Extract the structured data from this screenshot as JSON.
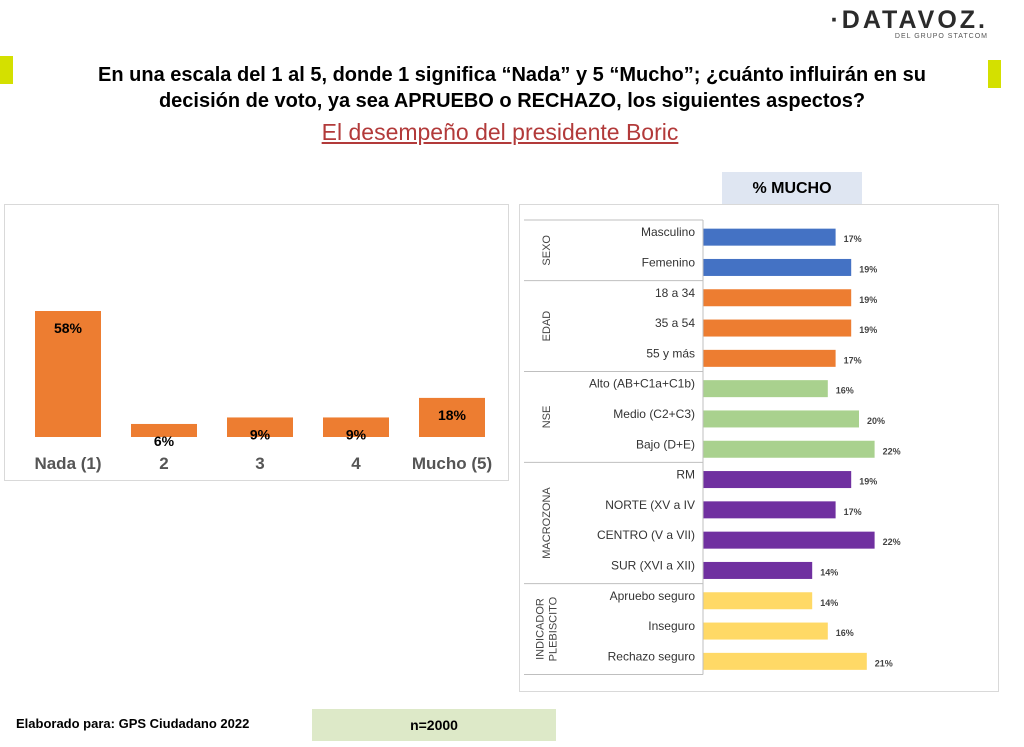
{
  "logo": {
    "main": "·DATAVOZ.",
    "sub": "DEL GRUPO STATCOM"
  },
  "title_line1": "En una escala del 1 al 5, donde 1 significa “Nada” y 5 “Mucho”; ¿cuánto influirán en su",
  "title_line2": "decisión de voto, ya sea APRUEBO o RECHAZO, los siguientes aspectos?",
  "subtitle": "El desempeño del presidente Boric",
  "mucho_header": "% MUCHO",
  "footer": {
    "elaborado": "Elaborado para:  GPS Ciudadano 2022",
    "n": "n=2000"
  },
  "colors": {
    "accent_marker": "#d4e000",
    "subtitle": "#b23a3a",
    "left_bars": "#ed7d31"
  },
  "chart_data": [
    {
      "type": "bar",
      "categories": [
        "Nada (1)",
        "2",
        "3",
        "4",
        "Mucho (5)"
      ],
      "values": [
        58,
        6,
        9,
        9,
        18
      ],
      "value_labels": [
        "58%",
        "6%",
        "9%",
        "9%",
        "18%"
      ],
      "color": "#ed7d31"
    },
    {
      "type": "bar",
      "orientation": "horizontal",
      "groups": [
        {
          "name": "SEXO",
          "color": "#4472c4",
          "categories": [
            "Masculino",
            "Femenino"
          ],
          "values": [
            17,
            19
          ],
          "value_labels": [
            "17%",
            "19%"
          ]
        },
        {
          "name": "EDAD",
          "color": "#ed7d31",
          "categories": [
            "18 a 34",
            "35 a 54",
            "55 y más"
          ],
          "values": [
            19,
            19,
            17
          ],
          "value_labels": [
            "19%",
            "19%",
            "17%"
          ]
        },
        {
          "name": "NSE",
          "color": "#a9d18e",
          "categories": [
            "Alto (AB+C1a+C1b)",
            "Medio (C2+C3)",
            "Bajo (D+E)"
          ],
          "values": [
            16,
            20,
            22
          ],
          "value_labels": [
            "16%",
            "20%",
            "22%"
          ]
        },
        {
          "name": "MACROZONA",
          "color": "#7030a0",
          "categories": [
            "RM",
            "NORTE (XV a IV",
            "CENTRO (V a VII)",
            "SUR (XVI a XII)"
          ],
          "values": [
            19,
            17,
            22,
            14
          ],
          "value_labels": [
            "19%",
            "17%",
            "22%",
            "14%"
          ]
        },
        {
          "name": "INDICADOR PLEBISCITO",
          "name_lines": [
            "INDICADOR",
            "PLEBISCITO"
          ],
          "color": "#ffd966",
          "categories": [
            "Apruebo seguro",
            "Inseguro",
            "Rechazo seguro"
          ],
          "values": [
            14,
            16,
            21
          ],
          "value_labels": [
            "14%",
            "16%",
            "21%"
          ]
        }
      ]
    }
  ]
}
